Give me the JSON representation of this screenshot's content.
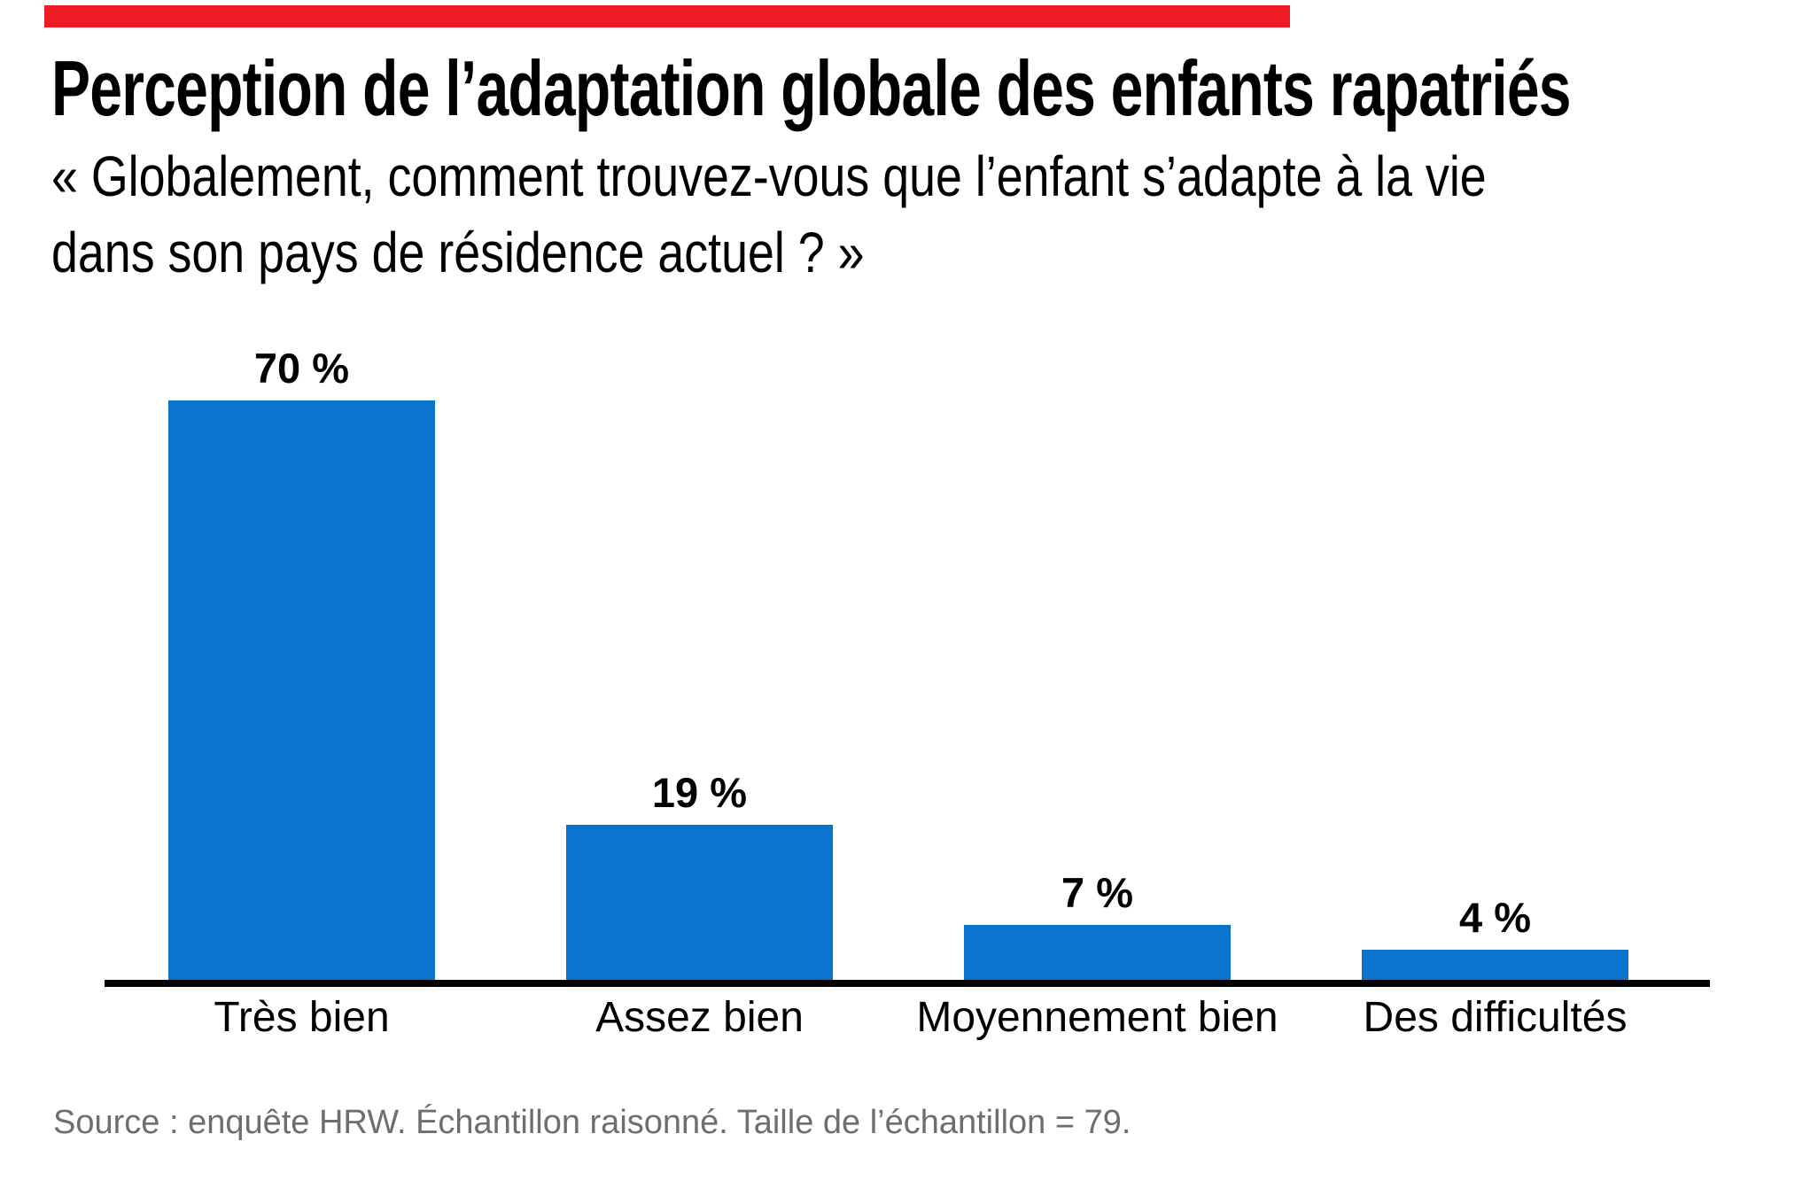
{
  "brand": {
    "top_bar_color": "#ee1c25"
  },
  "chart_data": {
    "type": "bar",
    "title": "Perception de l’adaptation globale des enfants rapatriés",
    "subtitle_lines": [
      "« Globalement, comment trouvez-vous que l’enfant s’adapte à la vie",
      "dans son pays de résidence actuel ? »"
    ],
    "categories": [
      "Très bien",
      "Assez bien",
      "Moyennement bien",
      "Des difficultés"
    ],
    "values": [
      70,
      19,
      7,
      4
    ],
    "value_labels": [
      "70 %",
      "19 %",
      "7 %",
      "4 %"
    ],
    "bar_color": "#0a74cc",
    "axis_color": "#000000",
    "text_color": "#000000",
    "ylim": [
      0,
      75
    ],
    "grid": false,
    "legend": "none",
    "value_label_position": "above"
  },
  "footer": {
    "source": "Source : enquête HRW. Échantillon raisonné. Taille de l’échantillon = 79.",
    "color": "#6d6e71"
  }
}
